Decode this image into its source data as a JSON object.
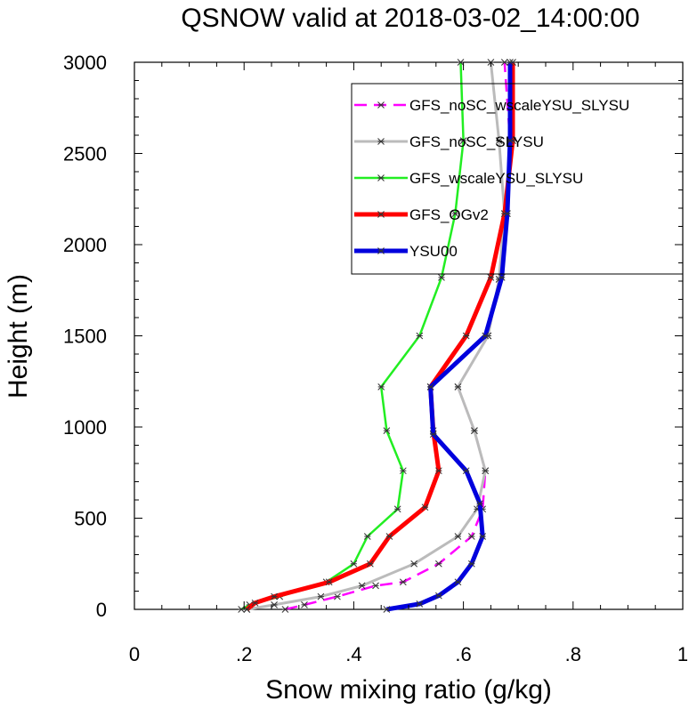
{
  "chart_data": {
    "type": "line",
    "title": "QSNOW valid at 2018-03-02_14:00:00",
    "xlabel": "Snow mixing ratio (g/kg)",
    "ylabel": "Height (m)",
    "xlim": [
      0,
      1
    ],
    "ylim": [
      0,
      3000
    ],
    "x_ticks": [
      0,
      0.2,
      0.4,
      0.6,
      0.8,
      1.0
    ],
    "x_tick_labels": [
      "0",
      ".2",
      ".4",
      ".6",
      ".8",
      "1"
    ],
    "y_ticks": [
      0,
      500,
      1000,
      1500,
      2000,
      2500,
      3000
    ],
    "y_tick_labels": [
      "0",
      "500",
      "1000",
      "1500",
      "2000",
      "2500",
      "3000"
    ],
    "grid": false,
    "legend_position": "top-right",
    "series": [
      {
        "name": "GFS_noSC_wscaleYSU_SLYSU",
        "color": "#ff00ff",
        "dash": "dashed",
        "width": 2.5,
        "points": [
          [
            0.275,
            0
          ],
          [
            0.31,
            25
          ],
          [
            0.37,
            70
          ],
          [
            0.44,
            130
          ],
          [
            0.49,
            150
          ],
          [
            0.555,
            250
          ],
          [
            0.615,
            400
          ],
          [
            0.635,
            550
          ],
          [
            0.64,
            760
          ],
          [
            0.62,
            980
          ],
          [
            0.59,
            1220
          ],
          [
            0.645,
            1500
          ],
          [
            0.665,
            1810
          ],
          [
            0.68,
            2170
          ],
          [
            0.685,
            2570
          ],
          [
            0.675,
            3000
          ]
        ]
      },
      {
        "name": "GFS_noSC_SLYSU",
        "color": "#bbbbbb",
        "dash": "solid",
        "width": 3,
        "points": [
          [
            0.205,
            0
          ],
          [
            0.255,
            25
          ],
          [
            0.34,
            70
          ],
          [
            0.415,
            130
          ],
          [
            0.51,
            250
          ],
          [
            0.59,
            400
          ],
          [
            0.625,
            550
          ],
          [
            0.64,
            760
          ],
          [
            0.62,
            980
          ],
          [
            0.59,
            1220
          ],
          [
            0.645,
            1500
          ],
          [
            0.665,
            1810
          ],
          [
            0.675,
            2170
          ],
          [
            0.665,
            2570
          ],
          [
            0.65,
            3000
          ]
        ]
      },
      {
        "name": "GFS_wscaleYSU_SLYSU",
        "color": "#22ee22",
        "dash": "solid",
        "width": 2.5,
        "points": [
          [
            0.195,
            0
          ],
          [
            0.21,
            25
          ],
          [
            0.265,
            70
          ],
          [
            0.35,
            150
          ],
          [
            0.4,
            250
          ],
          [
            0.425,
            400
          ],
          [
            0.48,
            550
          ],
          [
            0.49,
            760
          ],
          [
            0.46,
            980
          ],
          [
            0.45,
            1220
          ],
          [
            0.52,
            1500
          ],
          [
            0.56,
            1820
          ],
          [
            0.585,
            2170
          ],
          [
            0.6,
            2570
          ],
          [
            0.595,
            3000
          ]
        ]
      },
      {
        "name": "GFS_OGv2",
        "color": "#ff0000",
        "dash": "solid",
        "width": 5,
        "points": [
          [
            0.205,
            0
          ],
          [
            0.22,
            35
          ],
          [
            0.255,
            70
          ],
          [
            0.355,
            150
          ],
          [
            0.43,
            250
          ],
          [
            0.465,
            400
          ],
          [
            0.53,
            560
          ],
          [
            0.555,
            760
          ],
          [
            0.545,
            980
          ],
          [
            0.54,
            1220
          ],
          [
            0.605,
            1500
          ],
          [
            0.65,
            1820
          ],
          [
            0.675,
            2170
          ],
          [
            0.69,
            2570
          ],
          [
            0.69,
            3000
          ]
        ]
      },
      {
        "name": "YSU00",
        "color": "#0000dd",
        "dash": "solid",
        "width": 5,
        "points": [
          [
            0.46,
            0
          ],
          [
            0.52,
            30
          ],
          [
            0.555,
            75
          ],
          [
            0.59,
            150
          ],
          [
            0.615,
            250
          ],
          [
            0.635,
            400
          ],
          [
            0.63,
            580
          ],
          [
            0.605,
            760
          ],
          [
            0.545,
            960
          ],
          [
            0.54,
            1220
          ],
          [
            0.64,
            1500
          ],
          [
            0.67,
            1820
          ],
          [
            0.68,
            2170
          ],
          [
            0.685,
            2570
          ],
          [
            0.685,
            3000
          ]
        ]
      }
    ]
  }
}
